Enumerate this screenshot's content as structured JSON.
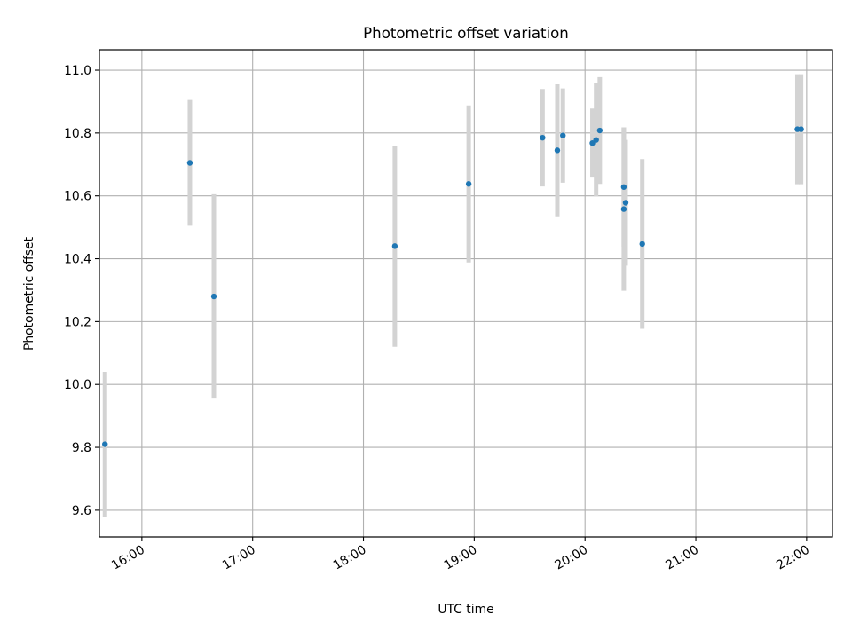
{
  "chart_data": {
    "type": "scatter",
    "title": "Photometric offset variation",
    "xlabel": "UTC time",
    "ylabel": "Photometric offset",
    "x_axis_type": "time",
    "xlim": [
      "15:37",
      "22:14"
    ],
    "ylim": [
      9.515,
      11.065
    ],
    "x_ticks": [
      "16:00",
      "17:00",
      "18:00",
      "19:00",
      "20:00",
      "21:00",
      "22:00"
    ],
    "y_ticks": [
      "9.6",
      "9.8",
      "10.0",
      "10.2",
      "10.4",
      "10.6",
      "10.8",
      "11.0"
    ],
    "grid": true,
    "legend": "none",
    "colors": {
      "point": "#1f77b4",
      "errorbar": "#d3d3d3",
      "grid": "#b0b0b0"
    },
    "points": [
      {
        "x": "15:40",
        "y": 9.81,
        "err": 0.23
      },
      {
        "x": "16:26",
        "y": 10.705,
        "err": 0.2
      },
      {
        "x": "16:39",
        "y": 10.28,
        "err": 0.325
      },
      {
        "x": "18:17",
        "y": 10.44,
        "err": 0.32
      },
      {
        "x": "18:57",
        "y": 10.638,
        "err": 0.25
      },
      {
        "x": "19:37",
        "y": 10.785,
        "err": 0.155
      },
      {
        "x": "19:45",
        "y": 10.745,
        "err": 0.21
      },
      {
        "x": "19:48",
        "y": 10.792,
        "err": 0.15
      },
      {
        "x": "20:04",
        "y": 10.768,
        "err": 0.11
      },
      {
        "x": "20:06",
        "y": 10.778,
        "err": 0.18
      },
      {
        "x": "20:08",
        "y": 10.808,
        "err": 0.17
      },
      {
        "x": "20:21",
        "y": 10.628,
        "err": 0.19
      },
      {
        "x": "20:21",
        "y": 10.558,
        "err": 0.26
      },
      {
        "x": "20:22",
        "y": 10.578,
        "err": 0.2
      },
      {
        "x": "20:31",
        "y": 10.447,
        "err": 0.27
      },
      {
        "x": "21:55",
        "y": 10.812,
        "err": 0.175
      },
      {
        "x": "21:57",
        "y": 10.812,
        "err": 0.175
      }
    ]
  }
}
